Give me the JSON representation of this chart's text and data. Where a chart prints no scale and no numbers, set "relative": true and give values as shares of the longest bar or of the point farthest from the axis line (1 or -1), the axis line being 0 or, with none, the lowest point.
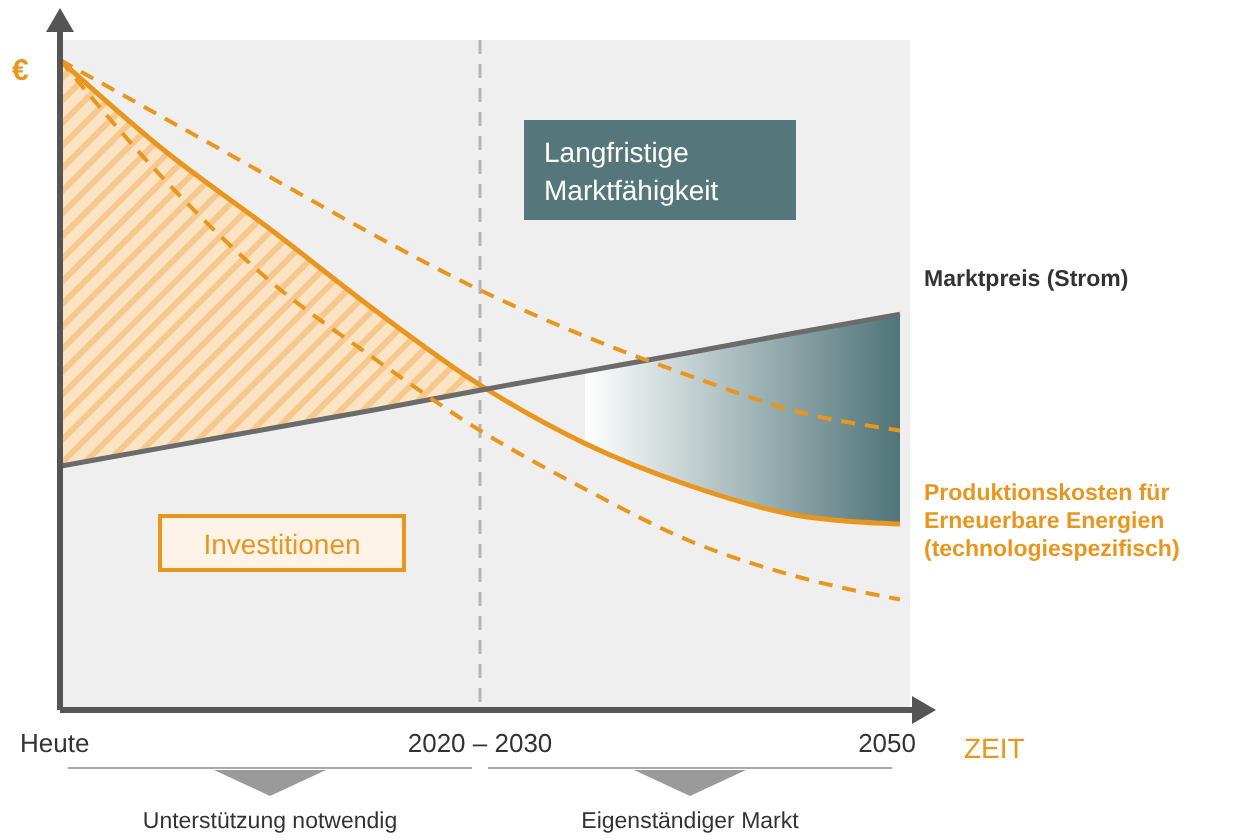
{
  "chart_data": {
    "type": "line",
    "relative": true,
    "ylabel": "€",
    "xlabel": "ZEIT",
    "categories": [
      "Heute",
      null,
      null,
      null,
      "2020 – 2030",
      null,
      null,
      null,
      "2050"
    ],
    "series": [
      {
        "name": "Produktionskosten für Erneuerbare Energien (technologiespezifisch)",
        "color": "#e8961e",
        "line_style": "solid",
        "values": [
          1.0,
          0.86,
          0.74,
          0.615,
          0.5,
          0.41,
          0.345,
          0.3,
          0.286
        ]
      },
      {
        "name": "Marktpreis (Strom)",
        "color": "#6b6b6b",
        "line_style": "solid",
        "values": [
          0.375,
          0.404,
          0.433,
          0.462,
          0.492,
          0.521,
          0.55,
          0.58,
          0.609
        ]
      },
      {
        "color": "#e8961e",
        "line_style": "dashed",
        "values": [
          1.0,
          0.91,
          0.82,
          0.73,
          0.646,
          0.575,
          0.514,
          0.46,
          0.43
        ]
      },
      {
        "color": "#e8961e",
        "line_style": "dashed",
        "values": [
          1.0,
          0.815,
          0.66,
          0.54,
          0.43,
          0.34,
          0.26,
          0.206,
          0.17
        ]
      }
    ],
    "ref_lines": [
      {
        "axis": "x",
        "value": "2020 – 2030",
        "color": "#b5b5b5",
        "line_style": "dashed"
      }
    ],
    "annotations": [
      "Langfristige Marktfähigkeit",
      "Investitionen",
      "Unterstützung notwendig",
      "Eigenständiger Markt"
    ],
    "legend": false,
    "marker": "none"
  }
}
